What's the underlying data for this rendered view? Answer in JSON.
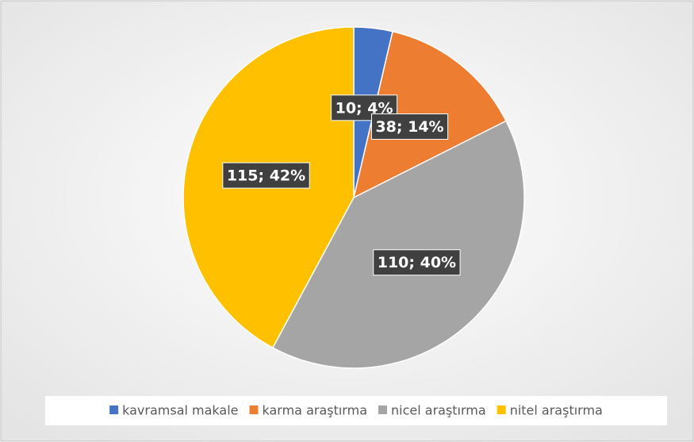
{
  "chart_data": {
    "type": "pie",
    "categories": [
      "kavramsal makale",
      "karma araştırma",
      "nicel araştırma",
      "nitel araştırma"
    ],
    "values": [
      10,
      38,
      110,
      115
    ],
    "value_labels": [
      "10; 4%",
      "38; 14%",
      "110; 40%",
      "115; 42%"
    ],
    "colors": [
      "#4472c4",
      "#ed7d31",
      "#a5a5a5",
      "#ffc000"
    ],
    "legend": "bottom"
  }
}
